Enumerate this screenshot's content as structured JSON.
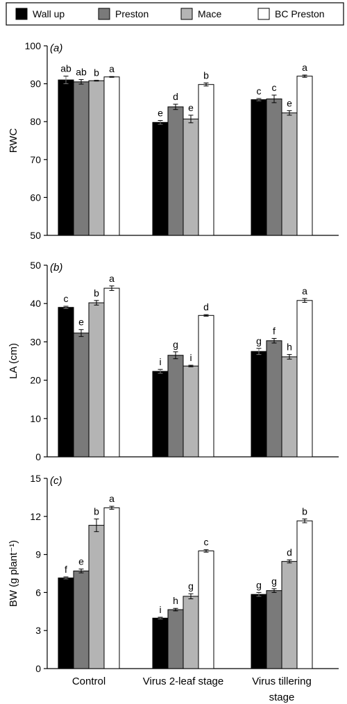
{
  "legend": [
    {
      "name": "Wall up",
      "color": "#000000"
    },
    {
      "name": "Preston",
      "color": "#7a7a7a"
    },
    {
      "name": "Mace",
      "color": "#b4b4b4"
    },
    {
      "name": "BC Preston",
      "color": "#ffffff"
    }
  ],
  "categories": [
    "Control",
    "Virus 2-leaf stage",
    "Virus tillering stage"
  ],
  "category_labels": [
    [
      "Control"
    ],
    [
      "Virus 2-leaf stage"
    ],
    [
      "Virus tillering",
      "stage"
    ]
  ],
  "chart_data": [
    {
      "type": "bar",
      "panel_label": "(a)",
      "ylabel": "RWC",
      "ylim": [
        50,
        100
      ],
      "yticks": [
        50,
        60,
        70,
        80,
        90,
        100
      ],
      "categories": [
        "Control",
        "Virus 2-leaf stage",
        "Virus tillering stage"
      ],
      "series": [
        {
          "name": "Wall up",
          "values": [
            91.0,
            79.8,
            85.8
          ],
          "errors": [
            1.0,
            0.5,
            0.3
          ],
          "letters": [
            "ab",
            "e",
            "c"
          ]
        },
        {
          "name": "Preston",
          "values": [
            90.5,
            83.9,
            86.0
          ],
          "errors": [
            0.6,
            0.7,
            1.0
          ],
          "letters": [
            "ab",
            "d",
            "c"
          ]
        },
        {
          "name": "Mace",
          "values": [
            90.8,
            80.7,
            82.3
          ],
          "errors": [
            0.1,
            1.0,
            0.6
          ],
          "letters": [
            "b",
            "e",
            "e"
          ]
        },
        {
          "name": "BC Preston",
          "values": [
            91.8,
            89.8,
            92.0
          ],
          "errors": [
            0.1,
            0.4,
            0.3
          ],
          "letters": [
            "a",
            "b",
            "a"
          ]
        }
      ]
    },
    {
      "type": "bar",
      "panel_label": "(b)",
      "ylabel": "LA (cm)",
      "ylim": [
        0,
        50
      ],
      "yticks": [
        0,
        10,
        20,
        30,
        40,
        50
      ],
      "categories": [
        "Control",
        "Virus 2-leaf stage",
        "Virus tillering stage"
      ],
      "series": [
        {
          "name": "Wall up",
          "values": [
            39.0,
            22.3,
            27.5
          ],
          "errors": [
            0.3,
            0.5,
            0.8
          ],
          "letters": [
            "c",
            "i",
            "g"
          ]
        },
        {
          "name": "Preston",
          "values": [
            32.3,
            26.5,
            30.3
          ],
          "errors": [
            0.9,
            0.9,
            0.6
          ],
          "letters": [
            "e",
            "g",
            "f"
          ]
        },
        {
          "name": "Mace",
          "values": [
            40.2,
            23.7,
            26.1
          ],
          "errors": [
            0.6,
            0.2,
            0.6
          ],
          "letters": [
            "b",
            "i",
            "h"
          ]
        },
        {
          "name": "BC Preston",
          "values": [
            44.0,
            36.9,
            40.8
          ],
          "errors": [
            0.6,
            0.2,
            0.5
          ],
          "letters": [
            "a",
            "d",
            "a"
          ]
        }
      ]
    },
    {
      "type": "bar",
      "panel_label": "(c)",
      "ylabel": "BW (g plant⁻¹)",
      "ylim": [
        0,
        15
      ],
      "yticks": [
        0,
        3,
        6,
        9,
        12,
        15
      ],
      "categories": [
        "Control",
        "Virus 2-leaf stage",
        "Virus tillering stage"
      ],
      "series": [
        {
          "name": "Wall up",
          "values": [
            7.15,
            3.98,
            5.85
          ],
          "errors": [
            0.08,
            0.07,
            0.15
          ],
          "letters": [
            "f",
            "i",
            "g"
          ]
        },
        {
          "name": "Preston",
          "values": [
            7.7,
            4.65,
            6.15
          ],
          "errors": [
            0.15,
            0.1,
            0.15
          ],
          "letters": [
            "e",
            "h",
            "g"
          ]
        },
        {
          "name": "Mace",
          "values": [
            11.3,
            5.7,
            8.45
          ],
          "errors": [
            0.5,
            0.2,
            0.12
          ],
          "letters": [
            "b",
            "g",
            "d"
          ]
        },
        {
          "name": "BC Preston",
          "values": [
            12.68,
            9.28,
            11.65
          ],
          "errors": [
            0.12,
            0.1,
            0.15
          ],
          "letters": [
            "a",
            "c",
            "b"
          ]
        }
      ]
    }
  ]
}
